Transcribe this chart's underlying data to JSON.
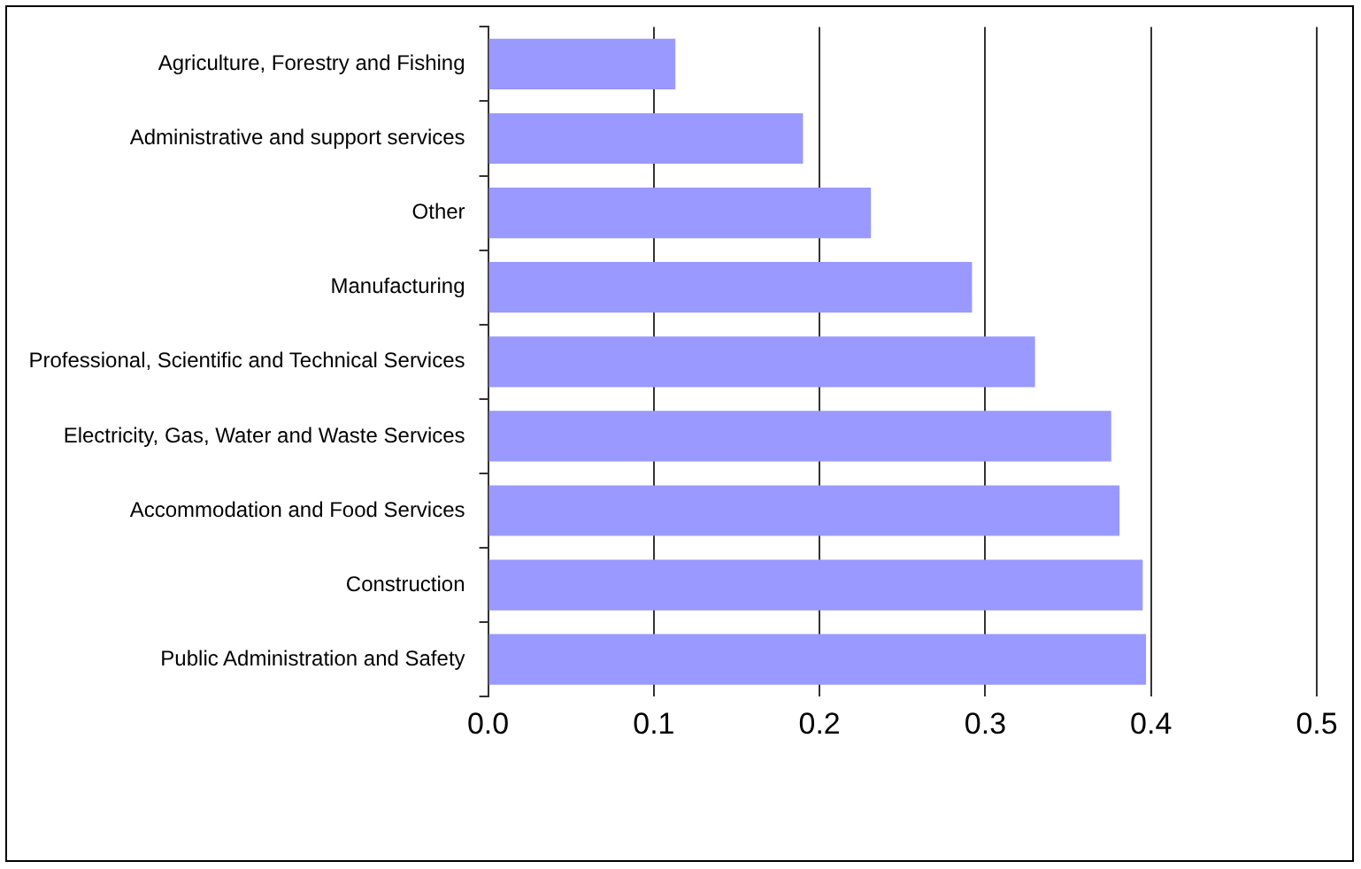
{
  "chart_data": {
    "type": "bar",
    "orientation": "horizontal",
    "categories": [
      "Agriculture, Forestry and Fishing",
      "Administrative and support services",
      "Other",
      "Manufacturing",
      "Professional, Scientific and Technical Services",
      "Electricity, Gas, Water and Waste Services",
      "Accommodation and Food Services",
      "Construction",
      "Public Administration and Safety"
    ],
    "values": [
      0.113,
      0.19,
      0.231,
      0.292,
      0.33,
      0.376,
      0.381,
      0.395,
      0.397
    ],
    "color": "#9999ff",
    "xlim": [
      0,
      0.5
    ],
    "xticks": [
      {
        "value": 0,
        "label": "0.0"
      },
      {
        "value": 0.1,
        "label": "0.1"
      },
      {
        "value": 0.2,
        "label": "0.2"
      },
      {
        "value": 0.3,
        "label": "0.3"
      },
      {
        "value": 0.4,
        "label": "0.4"
      },
      {
        "value": 0.5,
        "label": "0.5"
      }
    ],
    "grid": "x",
    "legend": false
  }
}
